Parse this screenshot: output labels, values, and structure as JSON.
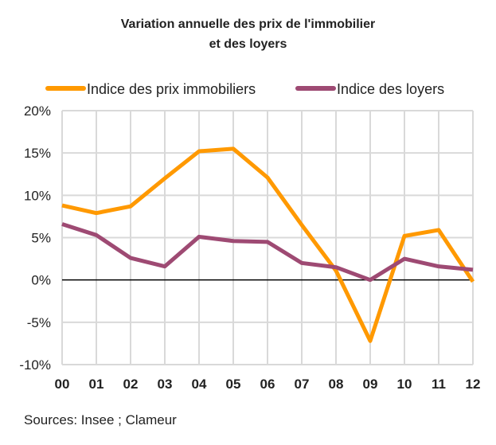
{
  "chart_data": {
    "type": "line",
    "title": [
      "Variation annuelle des prix de l'immobilier",
      "et des loyers"
    ],
    "categories": [
      "00",
      "01",
      "02",
      "03",
      "04",
      "05",
      "06",
      "07",
      "08",
      "09",
      "10",
      "11",
      "12"
    ],
    "series": [
      {
        "name": "Indice des prix immobiliers",
        "color": "#FF9900",
        "values": [
          8.8,
          7.9,
          8.7,
          12.0,
          15.2,
          15.5,
          12.1,
          6.5,
          1.1,
          -7.2,
          5.2,
          5.9,
          -0.2
        ]
      },
      {
        "name": "Indice des loyers",
        "color": "#9E4A73",
        "values": [
          6.6,
          5.3,
          2.6,
          1.6,
          5.1,
          4.6,
          4.5,
          2.0,
          1.5,
          0.0,
          2.5,
          1.6,
          1.2
        ]
      }
    ],
    "yticks": [
      20,
      15,
      10,
      5,
      0,
      -5,
      -10
    ],
    "ytick_labels": [
      "20%",
      "15%",
      "10%",
      "5%",
      "0%",
      "-5%",
      "-10%"
    ],
    "ylim": [
      -10,
      20
    ],
    "xlabel": "",
    "ylabel": "",
    "grid": true,
    "legend_position": "top"
  },
  "source": "Sources: Insee ; Clameur"
}
